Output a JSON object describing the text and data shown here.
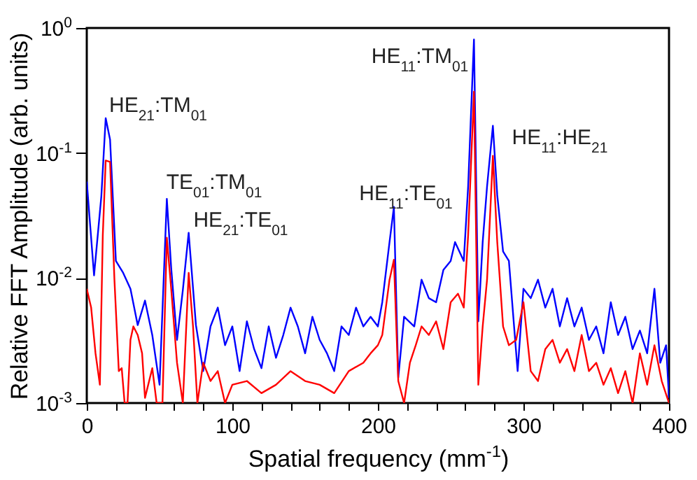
{
  "chart_data": {
    "type": "line",
    "xlabel": "Spatial frequency (mm$^{-1}$)",
    "ylabel": "Relative FFT Amplitude (arb. units)",
    "log": "y",
    "grid": false,
    "legend": false,
    "marker": "none",
    "line_style": "solid",
    "xlim": [
      0,
      400
    ],
    "xticks": [
      0,
      {
        "value": 20,
        "label": null
      },
      {
        "value": 40,
        "label": null
      },
      {
        "value": 60,
        "label": null
      },
      {
        "value": 80,
        "label": null
      },
      100,
      {
        "value": 120,
        "label": null
      },
      {
        "value": 140,
        "label": null
      },
      {
        "value": 160,
        "label": null
      },
      {
        "value": 180,
        "label": null
      },
      200,
      {
        "value": 220,
        "label": null
      },
      {
        "value": 240,
        "label": null
      },
      {
        "value": 260,
        "label": null
      },
      {
        "value": 280,
        "label": null
      },
      300,
      {
        "value": 320,
        "label": null
      },
      {
        "value": 340,
        "label": null
      },
      {
        "value": 360,
        "label": null
      },
      {
        "value": 380,
        "label": null
      },
      400
    ],
    "ylim": [
      0.001,
      1
    ],
    "yticks": [
      {
        "value": 0.001,
        "label": "10$^{-3}$"
      },
      {
        "value": 0.01,
        "label": "10$^{-2}$"
      },
      {
        "value": 0.1,
        "label": "10$^{-1}$"
      },
      {
        "value": 1,
        "label": "10$^{0}$"
      }
    ],
    "series": [
      {
        "color": "#0000ff",
        "x": [
          0,
          5,
          10,
          13,
          16,
          20,
          25,
          30,
          35,
          40,
          45,
          50,
          55,
          58,
          62,
          66,
          70,
          75,
          80,
          85,
          90,
          95,
          100,
          105,
          110,
          115,
          120,
          125,
          130,
          135,
          140,
          145,
          150,
          155,
          160,
          165,
          170,
          175,
          180,
          185,
          190,
          195,
          200,
          203,
          208,
          211,
          214,
          218,
          225,
          230,
          235,
          240,
          245,
          250,
          253,
          259,
          262,
          266,
          269,
          272,
          275,
          279,
          282,
          286,
          290,
          296,
          300,
          305,
          310,
          315,
          320,
          325,
          330,
          335,
          340,
          345,
          350,
          355,
          360,
          365,
          370,
          375,
          380,
          385,
          390,
          394,
          398,
          400
        ],
        "values": [
          0.059,
          0.0105,
          0.045,
          0.19,
          0.128,
          0.0137,
          0.011,
          0.0082,
          0.0042,
          0.0066,
          0.0035,
          0.0014,
          0.043,
          0.012,
          0.0032,
          0.008,
          0.023,
          0.0042,
          0.0018,
          0.0041,
          0.0058,
          0.0029,
          0.0041,
          0.0018,
          0.0045,
          0.0027,
          0.0019,
          0.0041,
          0.0023,
          0.0035,
          0.0058,
          0.0041,
          0.0025,
          0.0049,
          0.0032,
          0.0025,
          0.0018,
          0.0041,
          0.0035,
          0.0058,
          0.0041,
          0.0049,
          0.0041,
          0.0064,
          0.0194,
          0.037,
          0.0016,
          0.0049,
          0.0041,
          0.0097,
          0.0069,
          0.0064,
          0.0116,
          0.0137,
          0.0194,
          0.0137,
          0.054,
          0.81,
          0.0045,
          0.0194,
          0.054,
          0.165,
          0.046,
          0.0163,
          0.0137,
          0.0018,
          0.0082,
          0.0069,
          0.0097,
          0.0058,
          0.0082,
          0.0041,
          0.0069,
          0.0041,
          0.0058,
          0.0032,
          0.0041,
          0.0025,
          0.0064,
          0.0035,
          0.0049,
          0.0027,
          0.0038,
          0.0025,
          0.0082,
          0.0021,
          0.0029,
          0.0011
        ]
      },
      {
        "color": "#ff0000",
        "x": [
          0,
          3,
          6,
          9,
          11,
          13,
          16,
          19,
          22,
          24,
          26,
          28,
          30,
          32,
          35,
          38,
          40,
          45,
          48,
          52,
          55,
          58,
          62,
          66,
          70,
          73,
          76,
          80,
          85,
          90,
          95,
          100,
          110,
          120,
          130,
          140,
          150,
          160,
          170,
          180,
          190,
          195,
          200,
          203,
          208,
          211,
          214,
          218,
          222,
          226,
          230,
          235,
          240,
          245,
          250,
          255,
          259,
          262,
          266,
          269,
          272,
          275,
          279,
          282,
          286,
          290,
          295,
          300,
          305,
          310,
          315,
          320,
          325,
          330,
          335,
          340,
          345,
          350,
          355,
          360,
          365,
          370,
          375,
          380,
          385,
          390,
          395,
          400
        ],
        "values": [
          0.0082,
          0.0058,
          0.0025,
          0.0014,
          0.022,
          0.087,
          0.085,
          0.0097,
          0.0018,
          0.0019,
          0.001,
          0.001,
          0.0032,
          0.0041,
          0.0035,
          0.0025,
          0.0011,
          0.0019,
          0.001,
          0.001,
          0.021,
          0.0082,
          0.0021,
          0.001,
          0.011,
          0.0041,
          0.001,
          0.0021,
          0.0015,
          0.0018,
          0.001,
          0.0014,
          0.0015,
          0.0012,
          0.0014,
          0.0018,
          0.0015,
          0.0014,
          0.0012,
          0.0018,
          0.0021,
          0.0025,
          0.0029,
          0.0035,
          0.0097,
          0.014,
          0.0015,
          0.001,
          0.0021,
          0.0029,
          0.0041,
          0.0035,
          0.0045,
          0.0027,
          0.0064,
          0.0075,
          0.0058,
          0.022,
          0.31,
          0.0014,
          0.0041,
          0.0097,
          0.095,
          0.0194,
          0.0041,
          0.0029,
          0.0032,
          0.0064,
          0.0018,
          0.0015,
          0.0027,
          0.0032,
          0.0021,
          0.0027,
          0.0018,
          0.0035,
          0.0018,
          0.0021,
          0.0014,
          0.0019,
          0.0012,
          0.0018,
          0.001,
          0.0025,
          0.0014,
          0.0029,
          0.0015,
          0.001
        ]
      }
    ],
    "annotations": [
      "HE$_{21}$:TM$_{01}$",
      "TE$_{01}$:TM$_{01}$",
      "HE$_{21}$:TE$_{01}$",
      "HE$_{11}$:TE$_{01}$",
      "HE$_{11}$:TM$_{01}$",
      "HE$_{11}$:HE$_{21}$"
    ]
  }
}
